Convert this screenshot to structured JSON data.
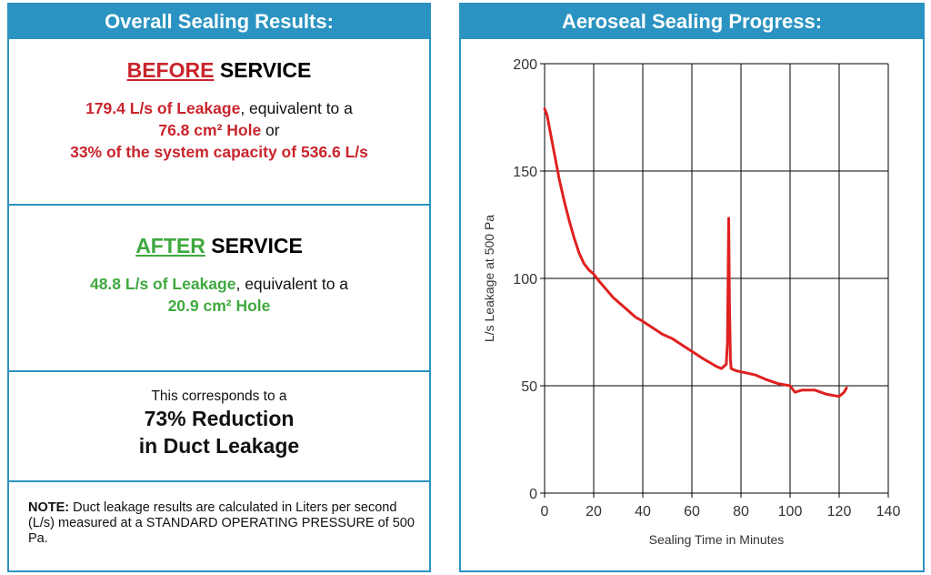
{
  "results": {
    "header": "Overall Sealing Results:",
    "before": {
      "title_colored": "BEFORE",
      "title_rest": "SERVICE",
      "leakage": "179.4 L/s of Leakage",
      "equiv": ", equivalent to a",
      "hole": "76.8 cm² Hole",
      "or": " or",
      "capacity": "33% of the system capacity of 536.6 L/s"
    },
    "after": {
      "title_colored": "AFTER",
      "title_rest": "SERVICE",
      "leakage": "48.8 L/s of Leakage",
      "equiv": ", equivalent to a",
      "hole": "20.9 cm² Hole"
    },
    "reduction": {
      "intro": "This corresponds to a",
      "line1": "73% Reduction",
      "line2": "in Duct Leakage"
    },
    "note": {
      "label": "NOTE:",
      "text": " Duct leakage results are calculated in Liters per second (L/s) measured at a STANDARD OPERATING PRESSURE of 500 Pa."
    }
  },
  "colors": {
    "accent": "#2b93c1",
    "before": "#c9252d",
    "after": "#3fa93f",
    "line": "#e02020"
  },
  "chart_data": {
    "type": "line",
    "title": "Aeroseal Sealing Progress:",
    "xlabel": "Sealing Time in Minutes",
    "ylabel": "L/s Leakage at 500 Pa",
    "xlim": [
      0,
      140
    ],
    "ylim": [
      0,
      200
    ],
    "xticks": [
      0,
      20,
      40,
      60,
      80,
      100,
      120,
      140
    ],
    "yticks": [
      0,
      50,
      100,
      150,
      200
    ],
    "grid": true,
    "series": [
      {
        "name": "Leakage",
        "x": [
          0,
          1,
          2,
          4,
          6,
          8,
          10,
          12,
          14,
          16,
          18,
          20,
          22,
          25,
          28,
          31,
          34,
          37,
          40,
          44,
          48,
          52,
          56,
          60,
          64,
          67,
          70,
          72,
          73,
          74,
          74.5,
          75,
          75.3,
          75.7,
          76,
          78,
          82,
          86,
          90,
          95,
          100,
          102,
          105,
          110,
          115,
          120,
          122,
          123
        ],
        "y": [
          179,
          176,
          170,
          158,
          146,
          136,
          127,
          119,
          112,
          107,
          104,
          102,
          99,
          95,
          91,
          88,
          85,
          82,
          80,
          77,
          74,
          72,
          69,
          66,
          63,
          61,
          59,
          58,
          59,
          60,
          70,
          128,
          90,
          62,
          58,
          57,
          56,
          55,
          53,
          51,
          50,
          47,
          48,
          48,
          46,
          45,
          47,
          49
        ]
      }
    ]
  }
}
